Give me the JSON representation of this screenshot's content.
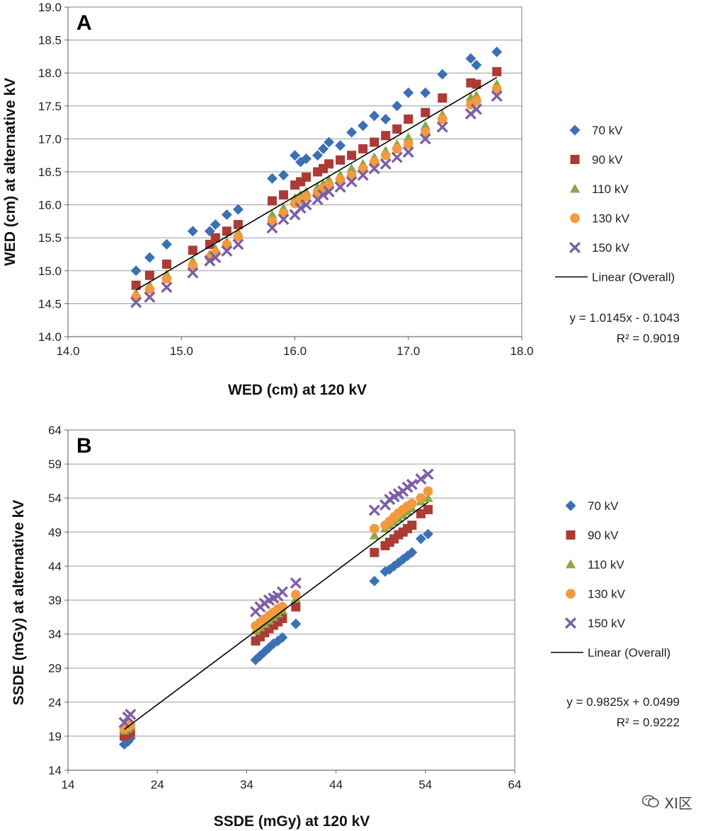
{
  "watermark": {
    "text": "XI区",
    "icon": "wechat-bubble-icon"
  },
  "chart_data": [
    {
      "type": "scatter",
      "panel_label": "A",
      "xlabel": "WED (cm) at 120 kV",
      "ylabel": "WED (cm) at alternative kV",
      "xlim": [
        14,
        18
      ],
      "ylim": [
        14,
        19
      ],
      "x_ticks": [
        "14.0",
        "15.0",
        "16.0",
        "17.0",
        "18.0"
      ],
      "x_tick_values": [
        14,
        15,
        16,
        17,
        18
      ],
      "y_ticks": [
        "14.0",
        "14.5",
        "15.0",
        "15.5",
        "16.0",
        "16.5",
        "17.0",
        "17.5",
        "18.0",
        "18.5",
        "19.0"
      ],
      "y_tick_values": [
        14,
        14.5,
        15,
        15.5,
        16,
        16.5,
        17,
        17.5,
        18,
        18.5,
        19
      ],
      "grid": "horizontal",
      "legend_position": "right",
      "x": [
        14.6,
        14.72,
        14.87,
        15.1,
        15.25,
        15.3,
        15.4,
        15.5,
        15.8,
        15.9,
        16.0,
        16.05,
        16.1,
        16.2,
        16.25,
        16.3,
        16.4,
        16.5,
        16.6,
        16.7,
        16.8,
        16.9,
        17.0,
        17.15,
        17.3,
        17.55,
        17.6,
        17.78
      ],
      "series": [
        {
          "name": "70 kV",
          "marker": "diamond",
          "color": "#3c70b4",
          "values": [
            15.0,
            15.2,
            15.4,
            15.6,
            15.6,
            15.7,
            15.85,
            15.93,
            16.4,
            16.45,
            16.75,
            16.65,
            16.7,
            16.75,
            16.85,
            16.95,
            16.9,
            17.1,
            17.2,
            17.35,
            17.3,
            17.5,
            17.7,
            17.7,
            17.98,
            18.22,
            18.12,
            18.32
          ]
        },
        {
          "name": "90 kV",
          "marker": "square",
          "color": "#ac3b36",
          "values": [
            14.78,
            14.93,
            15.1,
            15.31,
            15.4,
            15.5,
            15.6,
            15.7,
            16.06,
            16.15,
            16.3,
            16.35,
            16.42,
            16.5,
            16.55,
            16.62,
            16.68,
            16.75,
            16.85,
            16.95,
            17.05,
            17.15,
            17.3,
            17.4,
            17.62,
            17.85,
            17.83,
            18.02
          ]
        },
        {
          "name": "110 kV",
          "marker": "triangle",
          "color": "#89a94a",
          "values": [
            14.66,
            14.78,
            14.95,
            15.15,
            15.25,
            15.33,
            15.45,
            15.58,
            15.85,
            15.95,
            16.1,
            16.15,
            16.2,
            16.27,
            16.32,
            16.38,
            16.45,
            16.55,
            16.62,
            16.72,
            16.82,
            16.92,
            17.02,
            17.2,
            17.37,
            17.63,
            17.66,
            17.83
          ]
        },
        {
          "name": "130 kV",
          "marker": "circle",
          "color": "#f39a3e",
          "values": [
            14.6,
            14.72,
            14.88,
            15.08,
            15.2,
            15.27,
            15.4,
            15.52,
            15.75,
            15.87,
            16.02,
            16.07,
            16.12,
            16.18,
            16.25,
            16.3,
            16.38,
            16.45,
            16.55,
            16.65,
            16.75,
            16.85,
            16.92,
            17.1,
            17.3,
            17.52,
            17.58,
            17.75
          ]
        },
        {
          "name": "150 kV",
          "marker": "x",
          "color": "#7d5fa5",
          "values": [
            14.52,
            14.6,
            14.75,
            14.97,
            15.15,
            15.2,
            15.3,
            15.4,
            15.65,
            15.78,
            15.85,
            15.95,
            16.0,
            16.08,
            16.15,
            16.2,
            16.27,
            16.35,
            16.45,
            16.55,
            16.62,
            16.72,
            16.8,
            17.0,
            17.18,
            17.38,
            17.45,
            17.65
          ]
        }
      ],
      "trendline": {
        "name": "Linear (Overall)",
        "slope": 1.0145,
        "intercept": -0.1043,
        "color": "#000000"
      },
      "equation": "y = 1.0145x - 0.1043",
      "r_squared": "R² = 0.9019"
    },
    {
      "type": "scatter",
      "panel_label": "B",
      "xlabel": "SSDE (mGy) at 120 kV",
      "ylabel": "SSDE (mGy) at alternative kV",
      "xlim": [
        14,
        64
      ],
      "ylim": [
        14,
        64
      ],
      "x_ticks": [
        "14",
        "24",
        "34",
        "44",
        "54",
        "64"
      ],
      "x_tick_values": [
        14,
        24,
        34,
        44,
        54,
        64
      ],
      "y_ticks": [
        "14",
        "19",
        "24",
        "29",
        "34",
        "39",
        "44",
        "49",
        "54",
        "59",
        "64"
      ],
      "y_tick_values": [
        14,
        19,
        24,
        29,
        34,
        39,
        44,
        49,
        54,
        59,
        64
      ],
      "grid": "horizontal",
      "legend_position": "right",
      "x": [
        20.3,
        20.7,
        21.0,
        35.0,
        35.5,
        36.0,
        36.5,
        37.0,
        37.5,
        38.0,
        39.5,
        48.3,
        49.5,
        50.0,
        50.5,
        51.0,
        51.5,
        52.0,
        52.5,
        53.5,
        54.3
      ],
      "series": [
        {
          "name": "70 kV",
          "marker": "diamond",
          "color": "#3c70b4",
          "values": [
            17.8,
            18.2,
            18.7,
            30.2,
            30.8,
            31.4,
            32.0,
            32.6,
            33.0,
            33.5,
            35.5,
            41.8,
            43.2,
            43.5,
            44.0,
            44.5,
            45.0,
            45.5,
            46.0,
            48.0,
            48.7
          ]
        },
        {
          "name": "90 kV",
          "marker": "square",
          "color": "#ac3b36",
          "values": [
            19.0,
            19.3,
            19.6,
            33.0,
            33.6,
            34.2,
            34.8,
            35.3,
            35.8,
            36.3,
            38.0,
            46.0,
            47.0,
            47.5,
            48.0,
            48.6,
            49.0,
            49.5,
            50.0,
            51.7,
            52.3
          ]
        },
        {
          "name": "110 kV",
          "marker": "triangle",
          "color": "#89a94a",
          "values": [
            19.8,
            20.1,
            20.4,
            34.5,
            35.0,
            35.5,
            36.0,
            36.5,
            37.0,
            37.5,
            39.2,
            48.5,
            49.5,
            50.0,
            50.5,
            51.0,
            51.5,
            52.0,
            52.5,
            53.5,
            54.0
          ]
        },
        {
          "name": "130 kV",
          "marker": "circle",
          "color": "#f39a3e",
          "values": [
            20.1,
            20.4,
            20.7,
            35.2,
            35.7,
            36.2,
            36.7,
            37.2,
            37.7,
            38.0,
            39.8,
            49.5,
            50.0,
            50.6,
            51.2,
            51.8,
            52.3,
            52.8,
            53.2,
            54.0,
            55.0
          ]
        },
        {
          "name": "150 kV",
          "marker": "x",
          "color": "#7d5fa5",
          "values": [
            21.0,
            21.8,
            22.2,
            37.3,
            38.0,
            38.5,
            39.0,
            39.3,
            39.6,
            40.2,
            41.5,
            52.2,
            53.0,
            53.8,
            54.2,
            54.6,
            55.0,
            55.6,
            56.0,
            56.8,
            57.5
          ]
        }
      ],
      "trendline": {
        "name": "Linear (Overall)",
        "slope": 0.9825,
        "intercept": 0.0499,
        "color": "#000000"
      },
      "equation": "y = 0.9825x + 0.0499",
      "r_squared": "R² = 0.9222"
    }
  ]
}
